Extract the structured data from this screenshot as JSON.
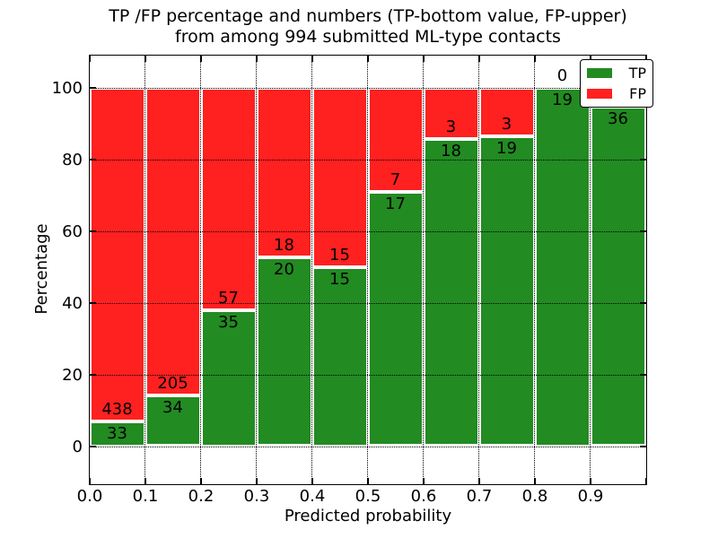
{
  "title": {
    "line1": "TP /FP percentage and numbers (TP-bottom value, FP-upper)",
    "line2": "from among 994 submitted ML-type contacts"
  },
  "chart_data": {
    "type": "bar",
    "stacked": true,
    "title": "TP /FP percentage and numbers (TP-bottom value, FP-upper) from among 994 submitted ML-type contacts",
    "xlabel": "Predicted probability",
    "ylabel": "Percentage",
    "total_contacts": 994,
    "xtick_labels": [
      "0.0",
      "0.1",
      "0.2",
      "0.3",
      "0.4",
      "0.5",
      "0.6",
      "0.7",
      "0.8",
      "0.9"
    ],
    "ytick_labels": [
      "0",
      "20",
      "40",
      "60",
      "80",
      "100"
    ],
    "ytick_values": [
      0,
      20,
      40,
      60,
      80,
      100
    ],
    "xlim": [
      0.0,
      1.0
    ],
    "ylim": [
      -10.5,
      109.5
    ],
    "bin_width": 0.1,
    "grid": "dotted",
    "legend_position": "upper right",
    "series": [
      {
        "name": "TP",
        "color": "#228b22",
        "values": [
          33,
          34,
          35,
          20,
          15,
          17,
          18,
          19,
          19,
          36
        ]
      },
      {
        "name": "FP",
        "color": "#ff2020",
        "values": [
          438,
          205,
          57,
          18,
          15,
          7,
          3,
          3,
          0,
          null
        ]
      }
    ],
    "bars": [
      {
        "bin": "0.0-0.1",
        "tp": 33,
        "fp": 438,
        "tp_pct": 7.0
      },
      {
        "bin": "0.1-0.2",
        "tp": 34,
        "fp": 205,
        "tp_pct": 14.2
      },
      {
        "bin": "0.2-0.3",
        "tp": 35,
        "fp": 57,
        "tp_pct": 38.0
      },
      {
        "bin": "0.3-0.4",
        "tp": 20,
        "fp": 18,
        "tp_pct": 52.6
      },
      {
        "bin": "0.4-0.5",
        "tp": 15,
        "fp": 15,
        "tp_pct": 50.0
      },
      {
        "bin": "0.5-0.6",
        "tp": 17,
        "fp": 7,
        "tp_pct": 70.8
      },
      {
        "bin": "0.6-0.7",
        "tp": 18,
        "fp": 3,
        "tp_pct": 85.7
      },
      {
        "bin": "0.7-0.8",
        "tp": 19,
        "fp": 3,
        "tp_pct": 86.4
      },
      {
        "bin": "0.8-0.9",
        "tp": 19,
        "fp": 0,
        "tp_pct": 100.0
      },
      {
        "bin": "0.9-1.0",
        "tp": 36,
        "fp": null,
        "tp_pct": 94.7
      }
    ]
  },
  "colors": {
    "tp": "#228b22",
    "fp": "#ff2020",
    "text": "#000000",
    "grid": "#000000",
    "background": "#ffffff"
  }
}
